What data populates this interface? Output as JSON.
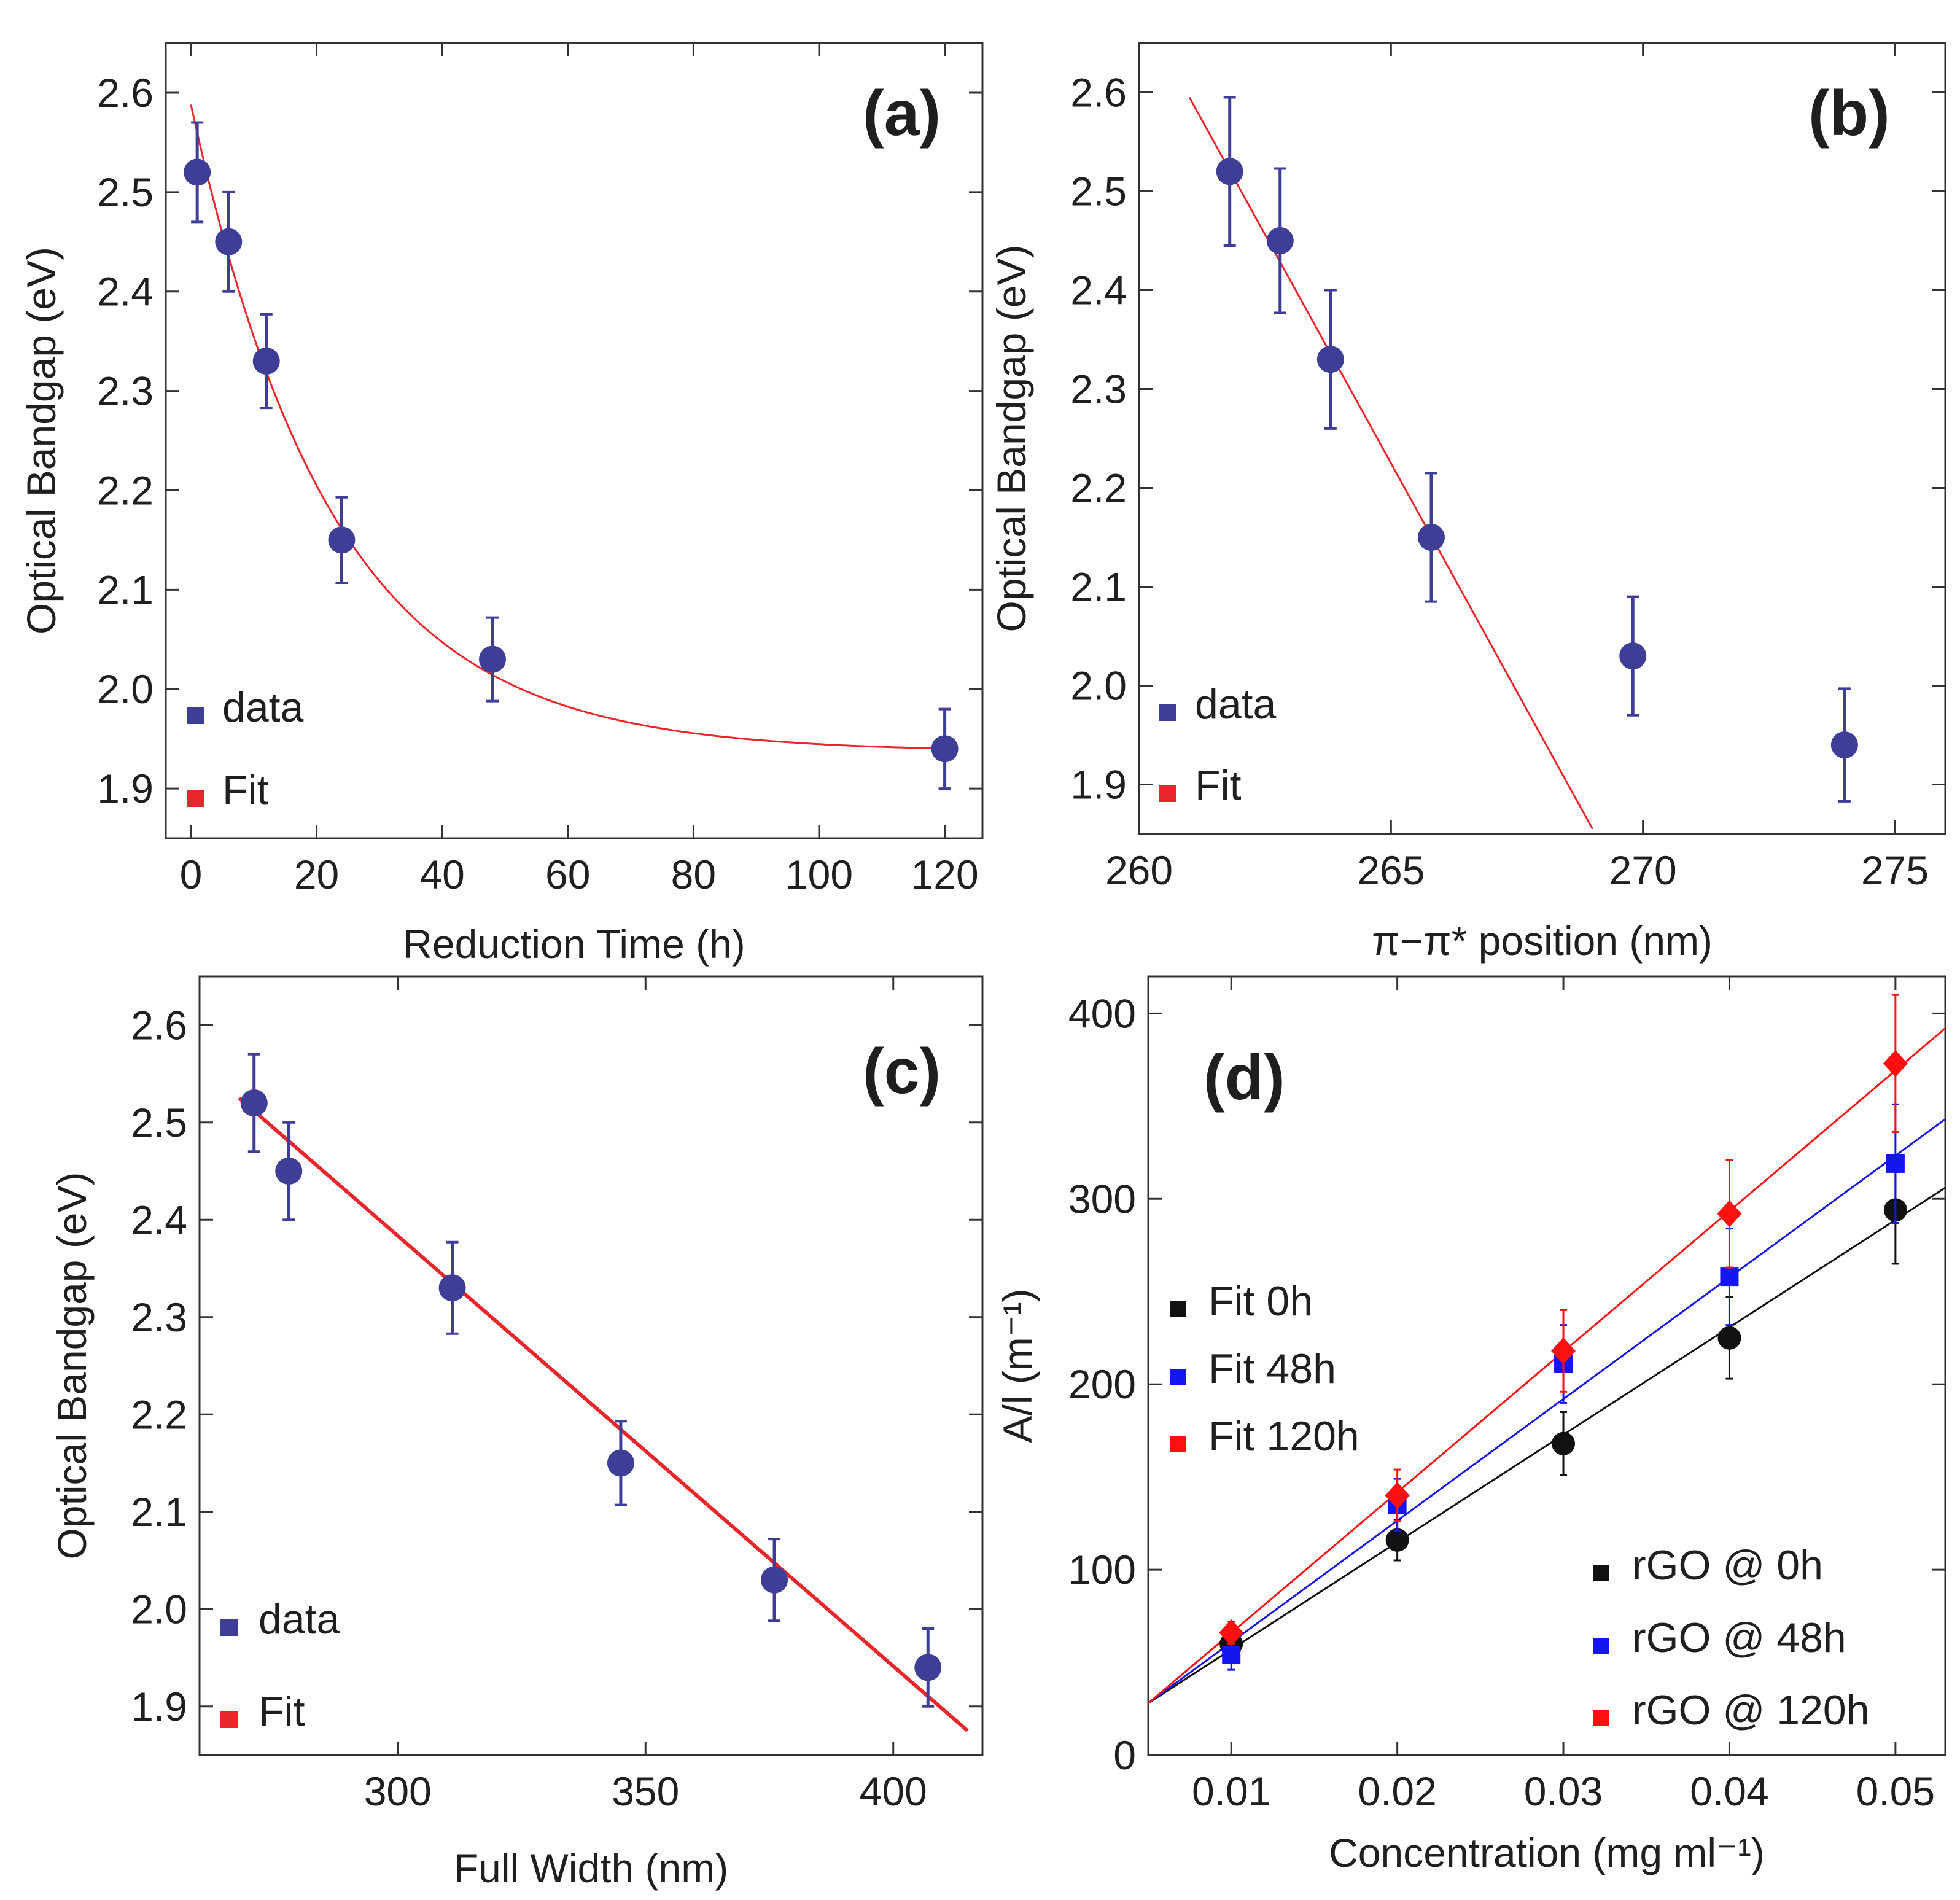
{
  "figure": {
    "colors": {
      "data": "#3e3e96",
      "fit": "#e8262b",
      "black": "#111111",
      "blue": "#1515ee",
      "red": "#ff1010",
      "axis": "#333333"
    }
  },
  "chart_data": [
    {
      "panel": "a",
      "label": "(a)",
      "type": "scatter",
      "xlabel": "Reduction Time (h)",
      "ylabel": "Optical Bandgap (eV)",
      "xlim": [
        -4,
        126
      ],
      "ylim": [
        1.85,
        2.65
      ],
      "xticks": [
        0,
        20,
        40,
        60,
        80,
        100,
        120
      ],
      "xtick_labels": [
        "0",
        "20",
        "40",
        "60",
        "80",
        "100",
        "120"
      ],
      "yticks": [
        1.9,
        2.0,
        2.1,
        2.2,
        2.3,
        2.4,
        2.5,
        2.6
      ],
      "ytick_labels": [
        "1.9",
        "2.0",
        "2.1",
        "2.2",
        "2.3",
        "2.4",
        "2.5",
        "2.6"
      ],
      "series": [
        {
          "name": "data",
          "x": [
            1,
            6,
            12,
            24,
            48,
            120
          ],
          "y": [
            2.52,
            2.45,
            2.33,
            2.15,
            2.03,
            1.94
          ],
          "err": [
            0.05,
            0.05,
            0.047,
            0.043,
            0.042,
            0.04
          ]
        }
      ],
      "fit": {
        "kind": "exp_decay",
        "A": 0.651,
        "k": 0.0444,
        "c": 1.937,
        "x0": 0,
        "x1": 120
      },
      "legend": [
        {
          "label": "data",
          "color": "#3e3e96"
        },
        {
          "label": "Fit",
          "color": "#e8262b"
        }
      ]
    },
    {
      "panel": "b",
      "label": "(b)",
      "type": "scatter",
      "xlabel": "π−π* position (nm)",
      "ylabel": "Optical Bandgap (eV)",
      "xlim": [
        260,
        276
      ],
      "ylim": [
        1.85,
        2.65
      ],
      "xticks": [
        260,
        265,
        270,
        275
      ],
      "xtick_labels": [
        "260",
        "265",
        "270",
        "275"
      ],
      "yticks": [
        1.9,
        2.0,
        2.1,
        2.2,
        2.3,
        2.4,
        2.5,
        2.6
      ],
      "ytick_labels": [
        "1.9",
        "2.0",
        "2.1",
        "2.2",
        "2.3",
        "2.4",
        "2.5",
        "2.6"
      ],
      "series": [
        {
          "name": "data",
          "x": [
            261.8,
            262.8,
            263.8,
            265.8,
            269.8,
            274.0
          ],
          "y": [
            2.52,
            2.45,
            2.33,
            2.15,
            2.03,
            1.94
          ],
          "err": [
            0.075,
            0.073,
            0.07,
            0.065,
            0.06,
            0.057
          ]
        }
      ],
      "fit": {
        "kind": "linear",
        "x0": 261.0,
        "y0": 2.595,
        "x1": 269.0,
        "y1": 1.855
      },
      "legend": [
        {
          "label": "data",
          "color": "#3e3e96"
        },
        {
          "label": "Fit",
          "color": "#e8262b"
        }
      ]
    },
    {
      "panel": "c",
      "label": "(c)",
      "type": "scatter",
      "xlabel": "Full Width (nm)",
      "ylabel": "Optical Bandgap (eV)",
      "xlim": [
        260,
        418
      ],
      "ylim": [
        1.85,
        2.65
      ],
      "xticks": [
        300,
        350,
        400
      ],
      "xtick_labels": [
        "300",
        "350",
        "400"
      ],
      "yticks": [
        1.9,
        2.0,
        2.1,
        2.2,
        2.3,
        2.4,
        2.5,
        2.6
      ],
      "ytick_labels": [
        "1.9",
        "2.0",
        "2.1",
        "2.2",
        "2.3",
        "2.4",
        "2.5",
        "2.6"
      ],
      "series": [
        {
          "name": "data",
          "x": [
            271,
            278,
            311,
            345,
            376,
            407
          ],
          "y": [
            2.52,
            2.45,
            2.33,
            2.15,
            2.03,
            1.94
          ],
          "err": [
            0.05,
            0.05,
            0.047,
            0.043,
            0.042,
            0.04
          ]
        }
      ],
      "fit": {
        "kind": "linear",
        "x0": 268,
        "y0": 2.525,
        "x1": 415,
        "y1": 1.875
      },
      "legend": [
        {
          "label": "data",
          "color": "#3e3e96"
        },
        {
          "label": "Fit",
          "color": "#e8262b"
        }
      ]
    },
    {
      "panel": "d",
      "label": "(d)",
      "type": "scatter",
      "xlabel": "Concentration (mg ml⁻¹)",
      "ylabel": "A/l (m⁻¹)",
      "xlim": [
        0.005,
        0.053
      ],
      "ylim": [
        0,
        420
      ],
      "xticks": [
        0.01,
        0.02,
        0.03,
        0.04,
        0.05
      ],
      "xtick_labels": [
        "0.01",
        "0.02",
        "0.03",
        "0.04",
        "0.05"
      ],
      "yticks": [
        0,
        100,
        200,
        300,
        400
      ],
      "ytick_labels": [
        "0",
        "100",
        "200",
        "300",
        "400"
      ],
      "series": [
        {
          "name": "rGO @ 0h",
          "marker": "circle",
          "color": "#111111",
          "x": [
            0.01,
            0.02,
            0.03,
            0.04,
            0.05
          ],
          "y": [
            60,
            116,
            168,
            225,
            294
          ],
          "err": [
            8,
            11,
            17,
            22,
            29
          ]
        },
        {
          "name": "rGO @ 48h",
          "marker": "square",
          "color": "#1515ee",
          "x": [
            0.01,
            0.02,
            0.03,
            0.04,
            0.05
          ],
          "y": [
            54,
            135,
            211,
            258,
            319
          ],
          "err": [
            8,
            14,
            21,
            26,
            32
          ]
        },
        {
          "name": "rGO @ 120h",
          "marker": "diamond",
          "color": "#ff1010",
          "x": [
            0.01,
            0.02,
            0.03,
            0.04,
            0.05
          ],
          "y": [
            66,
            140,
            218,
            292,
            373
          ],
          "err": [
            6,
            14,
            22,
            29,
            37
          ]
        }
      ],
      "fits": [
        {
          "name": "Fit 0h",
          "color": "#111111",
          "x0": 0.005,
          "y0": 28,
          "x1": 0.053,
          "y1": 306
        },
        {
          "name": "Fit 48h",
          "color": "#1515ee",
          "x0": 0.005,
          "y0": 28,
          "x1": 0.053,
          "y1": 343
        },
        {
          "name": "Fit 120h",
          "color": "#ff1010",
          "x0": 0.005,
          "y0": 28,
          "x1": 0.053,
          "y1": 392
        }
      ],
      "legend_fits": [
        {
          "label": "Fit 0h",
          "color": "#111111"
        },
        {
          "label": "Fit 48h",
          "color": "#1515ee"
        },
        {
          "label": "Fit 120h",
          "color": "#ff1010"
        }
      ],
      "legend_data": [
        {
          "label": "rGO @ 0h",
          "color": "#111111"
        },
        {
          "label": "rGO @ 48h",
          "color": "#1515ee"
        },
        {
          "label": "rGO @ 120h",
          "color": "#ff1010"
        }
      ]
    }
  ]
}
